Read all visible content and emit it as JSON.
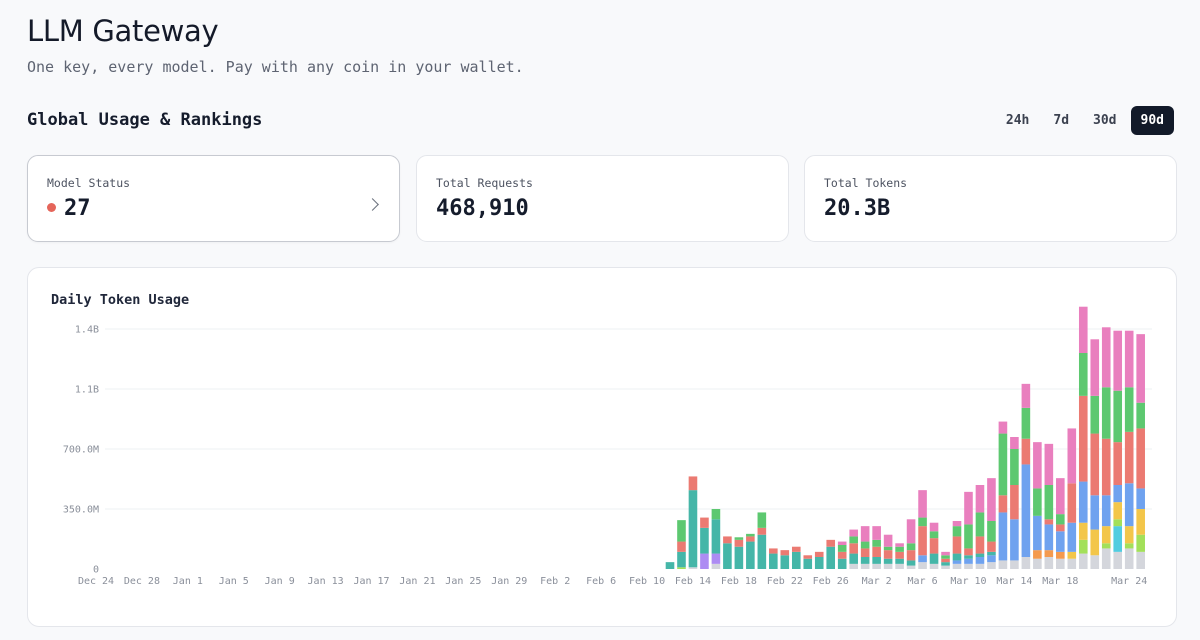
{
  "header": {
    "title": "LLM Gateway",
    "subtitle": "One key, every model. Pay with any coin in your wallet."
  },
  "section": {
    "title": "Global Usage & Rankings",
    "ranges": [
      "24h",
      "7d",
      "30d",
      "90d"
    ],
    "active_range": "90d"
  },
  "cards": {
    "model_status": {
      "label": "Model Status",
      "value": "27",
      "status_color": "#e5655a",
      "icon": "chevron-right-icon"
    },
    "total_requests": {
      "label": "Total Requests",
      "value": "468,910"
    },
    "total_tokens": {
      "label": "Total Tokens",
      "value": "20.3B"
    }
  },
  "chart_data": {
    "type": "bar",
    "stacked": true,
    "title": "Daily Token Usage",
    "y_ticks": [
      "0",
      "350.0M",
      "700.0M",
      "1.1B",
      "1.4B"
    ],
    "ylim": [
      0,
      1400
    ],
    "y_unit": "M tokens",
    "x_ticks": [
      "Dec 24",
      "Dec 28",
      "Jan 1",
      "Jan 5",
      "Jan 9",
      "Jan 13",
      "Jan 17",
      "Jan 21",
      "Jan 25",
      "Jan 29",
      "Feb 2",
      "Feb 6",
      "Feb 10",
      "Feb 14",
      "Feb 18",
      "Feb 22",
      "Feb 26",
      "Mar 2",
      "Mar 6",
      "Mar 10",
      "Mar 14",
      "Mar 18",
      "Mar 24"
    ],
    "grid": true,
    "legend": "none",
    "colors": [
      "#d4d6dc",
      "#52cde0",
      "#a3e05a",
      "#f3c64a",
      "#f49a4e",
      "#ad8cf3",
      "#6fa2ef",
      "#45b6a8",
      "#eb7a72",
      "#5dc870",
      "#e97fbe"
    ],
    "days": [
      {
        "date": "Feb 12",
        "segments": [
          [
            7,
            40
          ]
        ]
      },
      {
        "date": "Feb 13",
        "segments": [
          [
            2,
            10
          ],
          [
            7,
            90
          ],
          [
            8,
            60
          ],
          [
            9,
            125
          ]
        ]
      },
      {
        "date": "Feb 14",
        "segments": [
          [
            0,
            10
          ],
          [
            7,
            450
          ],
          [
            8,
            80
          ]
        ]
      },
      {
        "date": "Feb 15",
        "segments": [
          [
            5,
            90
          ],
          [
            7,
            150
          ],
          [
            8,
            60
          ]
        ]
      },
      {
        "date": "Feb 16",
        "segments": [
          [
            0,
            30
          ],
          [
            5,
            60
          ],
          [
            7,
            200
          ],
          [
            9,
            60
          ]
        ]
      },
      {
        "date": "Feb 17",
        "segments": [
          [
            7,
            150
          ],
          [
            8,
            40
          ]
        ]
      },
      {
        "date": "Feb 18",
        "segments": [
          [
            7,
            130
          ],
          [
            8,
            40
          ],
          [
            9,
            15
          ]
        ]
      },
      {
        "date": "Feb 19",
        "segments": [
          [
            7,
            160
          ],
          [
            8,
            30
          ],
          [
            9,
            15
          ]
        ]
      },
      {
        "date": "Feb 20",
        "segments": [
          [
            7,
            200
          ],
          [
            8,
            40
          ],
          [
            9,
            90
          ]
        ]
      },
      {
        "date": "Feb 21",
        "segments": [
          [
            7,
            90
          ],
          [
            8,
            30
          ]
        ]
      },
      {
        "date": "Feb 22",
        "segments": [
          [
            7,
            80
          ],
          [
            8,
            30
          ]
        ]
      },
      {
        "date": "Feb 23",
        "segments": [
          [
            7,
            100
          ],
          [
            8,
            30
          ]
        ]
      },
      {
        "date": "Feb 24",
        "segments": [
          [
            7,
            60
          ],
          [
            8,
            20
          ]
        ]
      },
      {
        "date": "Feb 25",
        "segments": [
          [
            7,
            70
          ],
          [
            8,
            30
          ]
        ]
      },
      {
        "date": "Feb 26",
        "segments": [
          [
            7,
            130
          ],
          [
            8,
            40
          ]
        ]
      },
      {
        "date": "Feb 27",
        "segments": [
          [
            7,
            60
          ],
          [
            8,
            40
          ],
          [
            9,
            40
          ],
          [
            10,
            20
          ]
        ]
      },
      {
        "date": "Feb 28",
        "segments": [
          [
            0,
            30
          ],
          [
            7,
            60
          ],
          [
            8,
            60
          ],
          [
            9,
            40
          ],
          [
            10,
            40
          ]
        ]
      },
      {
        "date": "Mar 1",
        "segments": [
          [
            0,
            30
          ],
          [
            7,
            40
          ],
          [
            8,
            50
          ],
          [
            9,
            40
          ],
          [
            10,
            90
          ]
        ]
      },
      {
        "date": "Mar 2",
        "segments": [
          [
            0,
            30
          ],
          [
            7,
            40
          ],
          [
            8,
            60
          ],
          [
            9,
            40
          ],
          [
            10,
            80
          ]
        ]
      },
      {
        "date": "Mar 3",
        "segments": [
          [
            0,
            30
          ],
          [
            7,
            30
          ],
          [
            8,
            50
          ],
          [
            9,
            20
          ],
          [
            10,
            70
          ]
        ]
      },
      {
        "date": "Mar 4",
        "segments": [
          [
            0,
            30
          ],
          [
            7,
            30
          ],
          [
            8,
            40
          ],
          [
            9,
            30
          ],
          [
            10,
            20
          ]
        ]
      },
      {
        "date": "Mar 5",
        "segments": [
          [
            0,
            20
          ],
          [
            7,
            30
          ],
          [
            8,
            60
          ],
          [
            9,
            40
          ],
          [
            10,
            140
          ]
        ]
      },
      {
        "date": "Mar 6",
        "segments": [
          [
            0,
            40
          ],
          [
            6,
            40
          ],
          [
            8,
            170
          ],
          [
            9,
            50
          ],
          [
            10,
            160
          ]
        ]
      },
      {
        "date": "Mar 7",
        "segments": [
          [
            0,
            30
          ],
          [
            7,
            60
          ],
          [
            8,
            90
          ],
          [
            9,
            40
          ],
          [
            10,
            50
          ]
        ]
      },
      {
        "date": "Mar 8",
        "segments": [
          [
            0,
            20
          ],
          [
            7,
            20
          ],
          [
            8,
            20
          ],
          [
            9,
            20
          ],
          [
            10,
            20
          ]
        ]
      },
      {
        "date": "Mar 9",
        "segments": [
          [
            0,
            30
          ],
          [
            6,
            20
          ],
          [
            7,
            40
          ],
          [
            8,
            100
          ],
          [
            9,
            60
          ],
          [
            10,
            30
          ]
        ]
      },
      {
        "date": "Mar 10",
        "segments": [
          [
            0,
            30
          ],
          [
            6,
            30
          ],
          [
            7,
            20
          ],
          [
            8,
            40
          ],
          [
            9,
            140
          ],
          [
            10,
            190
          ]
        ]
      },
      {
        "date": "Mar 11",
        "segments": [
          [
            0,
            30
          ],
          [
            6,
            40
          ],
          [
            7,
            20
          ],
          [
            8,
            100
          ],
          [
            9,
            140
          ],
          [
            10,
            160
          ]
        ]
      },
      {
        "date": "Mar 12",
        "segments": [
          [
            0,
            40
          ],
          [
            6,
            40
          ],
          [
            7,
            20
          ],
          [
            8,
            60
          ],
          [
            9,
            120
          ],
          [
            10,
            250
          ]
        ]
      },
      {
        "date": "Mar 13",
        "segments": [
          [
            0,
            50
          ],
          [
            6,
            280
          ],
          [
            8,
            100
          ],
          [
            9,
            360
          ],
          [
            10,
            70
          ]
        ]
      },
      {
        "date": "Mar 14",
        "segments": [
          [
            0,
            50
          ],
          [
            6,
            240
          ],
          [
            8,
            200
          ],
          [
            9,
            210
          ],
          [
            10,
            70
          ]
        ]
      },
      {
        "date": "Mar 15",
        "segments": [
          [
            0,
            70
          ],
          [
            6,
            540
          ],
          [
            8,
            150
          ],
          [
            9,
            180
          ],
          [
            10,
            140
          ]
        ]
      },
      {
        "date": "Mar 16",
        "segments": [
          [
            0,
            60
          ],
          [
            4,
            50
          ],
          [
            6,
            200
          ],
          [
            9,
            160
          ],
          [
            10,
            270
          ]
        ]
      },
      {
        "date": "Mar 17",
        "segments": [
          [
            0,
            70
          ],
          [
            4,
            40
          ],
          [
            6,
            150
          ],
          [
            8,
            30
          ],
          [
            9,
            200
          ],
          [
            10,
            240
          ]
        ]
      },
      {
        "date": "Mar 18",
        "segments": [
          [
            0,
            60
          ],
          [
            4,
            40
          ],
          [
            6,
            120
          ],
          [
            8,
            40
          ],
          [
            9,
            60
          ],
          [
            10,
            210
          ]
        ]
      },
      {
        "date": "Mar 19",
        "segments": [
          [
            0,
            60
          ],
          [
            3,
            40
          ],
          [
            6,
            170
          ],
          [
            8,
            230
          ],
          [
            10,
            320
          ]
        ]
      },
      {
        "date": "Mar 20",
        "segments": [
          [
            0,
            90
          ],
          [
            2,
            80
          ],
          [
            3,
            100
          ],
          [
            6,
            240
          ],
          [
            8,
            500
          ],
          [
            9,
            250
          ],
          [
            10,
            270
          ]
        ]
      },
      {
        "date": "Mar 21",
        "segments": [
          [
            0,
            80
          ],
          [
            3,
            150
          ],
          [
            6,
            200
          ],
          [
            8,
            360
          ],
          [
            9,
            220
          ],
          [
            10,
            330
          ]
        ]
      },
      {
        "date": "Mar 22",
        "segments": [
          [
            0,
            120
          ],
          [
            2,
            30
          ],
          [
            3,
            100
          ],
          [
            6,
            180
          ],
          [
            8,
            330
          ],
          [
            9,
            300
          ],
          [
            10,
            350
          ]
        ]
      },
      {
        "date": "Mar 23",
        "segments": [
          [
            0,
            100
          ],
          [
            1,
            150
          ],
          [
            2,
            40
          ],
          [
            3,
            100
          ],
          [
            6,
            100
          ],
          [
            8,
            250
          ],
          [
            9,
            300
          ],
          [
            10,
            350
          ]
        ]
      },
      {
        "date": "Mar 24",
        "segments": [
          [
            0,
            120
          ],
          [
            2,
            30
          ],
          [
            3,
            100
          ],
          [
            6,
            250
          ],
          [
            8,
            300
          ],
          [
            9,
            260
          ],
          [
            10,
            330
          ]
        ]
      },
      {
        "date": "Mar 25",
        "segments": [
          [
            0,
            100
          ],
          [
            2,
            100
          ],
          [
            3,
            150
          ],
          [
            6,
            120
          ],
          [
            8,
            350
          ],
          [
            9,
            150
          ],
          [
            10,
            400
          ]
        ]
      }
    ]
  }
}
